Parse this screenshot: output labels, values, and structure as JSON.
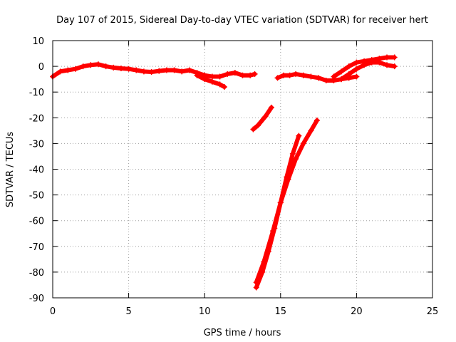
{
  "chart_data": {
    "type": "scatter",
    "title": "Day 107 of 2015, Sidereal Day-to-day VTEC variation (SDTVAR) for receiver hert",
    "xlabel": "GPS time / hours",
    "ylabel": "SDTVAR / TECUs",
    "xlim": [
      0,
      25
    ],
    "ylim": [
      -90,
      10
    ],
    "x_ticks": [
      0,
      5,
      10,
      15,
      20,
      25
    ],
    "y_ticks": [
      10,
      0,
      -10,
      -20,
      -30,
      -40,
      -50,
      -60,
      -70,
      -80,
      -90
    ],
    "grid": true,
    "legend": "none",
    "marker": "plus",
    "color": "#ff0000",
    "series": [
      {
        "x": [
          0.0,
          0.5,
          1.0,
          1.5,
          2.0,
          2.5,
          3.0,
          3.5,
          4.0,
          4.5,
          5.0,
          5.5,
          6.0,
          6.5,
          7.0,
          7.5,
          8.0,
          8.5,
          9.0,
          9.5,
          10.0,
          10.5,
          11.0,
          11.5,
          12.0,
          12.5,
          13.0,
          13.3
        ],
        "y": [
          -4,
          -2,
          -1.5,
          -1,
          0,
          0.5,
          0.8,
          0,
          -0.5,
          -0.8,
          -1,
          -1.5,
          -2,
          -2.2,
          -1.8,
          -1.5,
          -1.5,
          -2,
          -1.5,
          -2.5,
          -3.5,
          -4,
          -4,
          -3,
          -2.5,
          -3.5,
          -3.5,
          -3
        ]
      },
      {
        "x": [
          9.5,
          10.0,
          10.5,
          11.0,
          11.3
        ],
        "y": [
          -3.5,
          -5,
          -6,
          -7,
          -8
        ]
      },
      {
        "x": [
          13.2,
          13.5,
          14.0,
          14.4
        ],
        "y": [
          -24.5,
          -23,
          -19.5,
          -16
        ]
      },
      {
        "x": [
          13.4,
          13.8,
          14.2,
          14.6,
          15.0,
          15.4,
          15.8,
          16.2
        ],
        "y": [
          -86,
          -80,
          -72,
          -63,
          -53,
          -43,
          -34,
          -27
        ]
      },
      {
        "x": [
          13.4,
          13.9,
          14.5,
          15.0,
          15.5,
          16.0,
          16.5,
          17.0,
          17.4
        ],
        "y": [
          -84,
          -76,
          -64,
          -53,
          -44,
          -36,
          -30,
          -25,
          -21
        ]
      },
      {
        "x": [
          14.8,
          15.2,
          15.6,
          16.0,
          16.5,
          17.0,
          17.5,
          18.0,
          18.5,
          19.0,
          19.5,
          20.0
        ],
        "y": [
          -4.5,
          -3.5,
          -3.5,
          -3,
          -3.5,
          -4,
          -4.5,
          -5.5,
          -5.5,
          -5,
          -4.5,
          -4
        ]
      },
      {
        "x": [
          18.5,
          19.0,
          19.5,
          20.0,
          20.5,
          21.0,
          21.5,
          22.0,
          22.5
        ],
        "y": [
          -4,
          -2,
          0,
          1.5,
          2,
          2.5,
          3,
          3.5,
          3.5
        ]
      },
      {
        "x": [
          19.0,
          19.5,
          20.0,
          20.5,
          21.0,
          21.5,
          22.0,
          22.5
        ],
        "y": [
          -5,
          -3,
          -1,
          0.5,
          1.5,
          1.5,
          0.5,
          0
        ]
      }
    ]
  }
}
